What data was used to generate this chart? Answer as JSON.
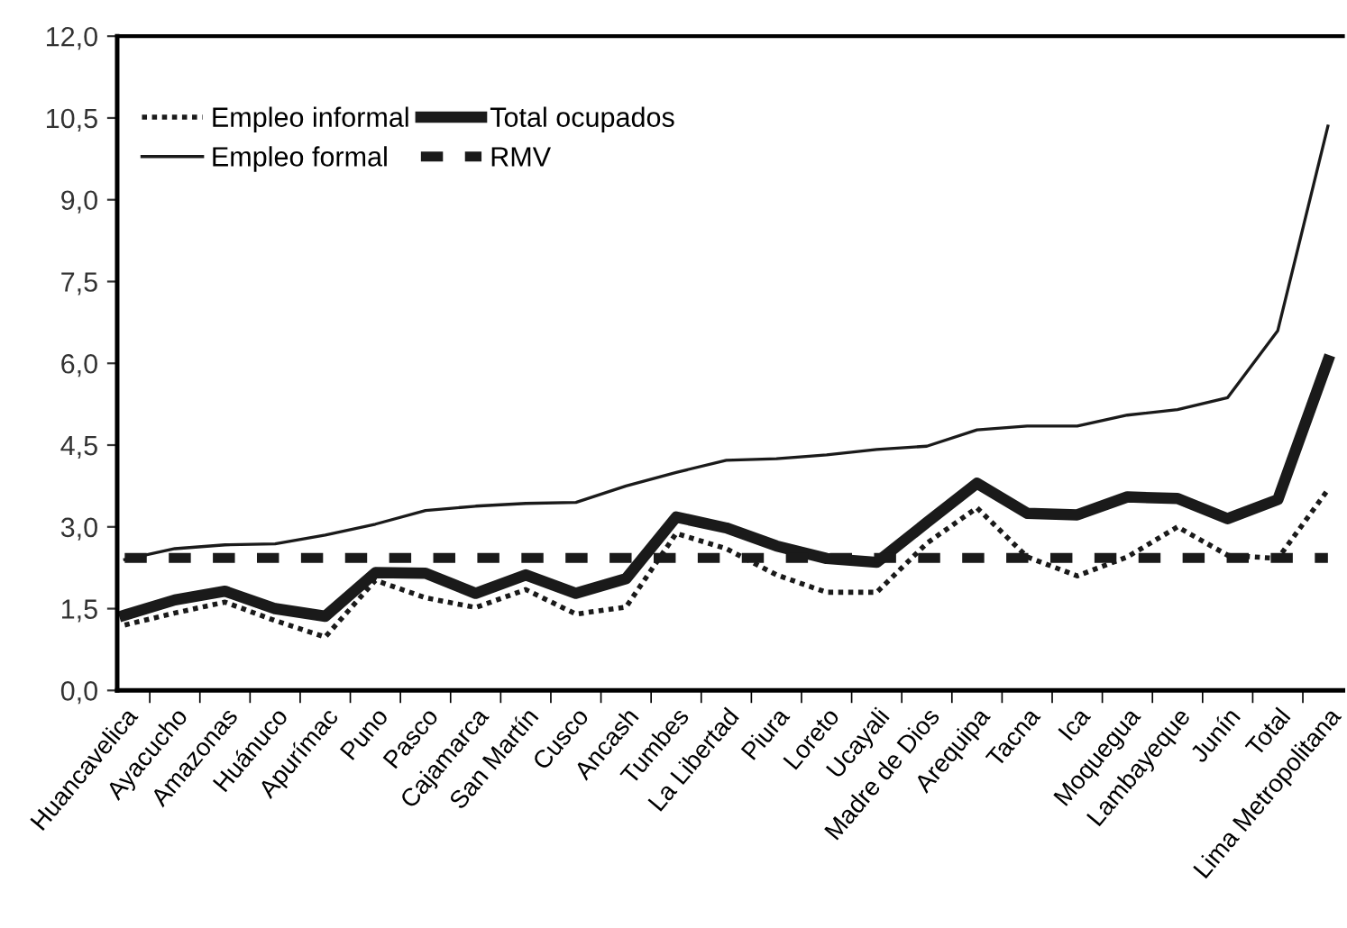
{
  "chart_data": {
    "type": "line",
    "categories": [
      "Huancavelica",
      "Ayacucho",
      "Amazonas",
      "Huánuco",
      "Apurímac",
      "Puno",
      "Pasco",
      "Cajamarca",
      "San Martín",
      "Cusco",
      "Ancash",
      "Tumbes",
      "La Libertad",
      "Piura",
      "Loreto",
      "Ucayali",
      "Madre de Dios",
      "Arequipa",
      "Tacna",
      "Ica",
      "Moquegua",
      "Lambayeque",
      "Junín",
      "Total",
      "Lima Metropolitana"
    ],
    "series": [
      {
        "name": "Empleo informal",
        "color": "#1a1a1a",
        "line_style": "dotted",
        "values": [
          1.2,
          1.42,
          1.62,
          1.28,
          0.98,
          2.02,
          1.7,
          1.52,
          1.85,
          1.4,
          1.53,
          2.88,
          2.6,
          2.12,
          1.8,
          1.8,
          2.7,
          3.35,
          2.45,
          2.1,
          2.45,
          3.0,
          2.48,
          2.42,
          3.68
        ]
      },
      {
        "name": "Empleo formal",
        "color": "#1a1a1a",
        "line_style": "solid",
        "values": [
          2.4,
          2.6,
          2.67,
          2.69,
          2.85,
          3.05,
          3.3,
          3.38,
          3.43,
          3.45,
          3.75,
          4.0,
          4.22,
          4.25,
          4.32,
          4.42,
          4.48,
          4.78,
          4.85,
          4.85,
          5.05,
          5.15,
          5.37,
          6.6,
          10.35
        ]
      },
      {
        "name": "Total ocupados",
        "color": "#1a1a1a",
        "line_style": "solid",
        "values": [
          1.38,
          1.66,
          1.82,
          1.5,
          1.36,
          2.16,
          2.15,
          1.78,
          2.12,
          1.78,
          2.05,
          3.18,
          2.98,
          2.65,
          2.42,
          2.35,
          3.08,
          3.8,
          3.25,
          3.22,
          3.55,
          3.52,
          3.15,
          3.5,
          6.05
        ]
      },
      {
        "name": "RMV",
        "color": "#1a1a1a",
        "line_style": "dashed",
        "values": [
          2.43,
          2.43,
          2.43,
          2.43,
          2.43,
          2.43,
          2.43,
          2.43,
          2.43,
          2.43,
          2.43,
          2.43,
          2.43,
          2.43,
          2.43,
          2.43,
          2.43,
          2.43,
          2.43,
          2.43,
          2.43,
          2.43,
          2.43,
          2.43,
          2.43
        ]
      }
    ],
    "ylim": [
      0,
      12
    ],
    "yticks": [
      {
        "value": 0,
        "label": "0,0"
      },
      {
        "value": 1.5,
        "label": "1,5"
      },
      {
        "value": 3,
        "label": "3,0"
      },
      {
        "value": 4.5,
        "label": "4,5"
      },
      {
        "value": 6,
        "label": "6,0"
      },
      {
        "value": 7.5,
        "label": "7,5"
      },
      {
        "value": 9,
        "label": "9,0"
      },
      {
        "value": 10.5,
        "label": "10,5"
      },
      {
        "value": 12,
        "label": "12,0"
      }
    ],
    "grid": false,
    "legend": "top left",
    "marker": "none"
  }
}
